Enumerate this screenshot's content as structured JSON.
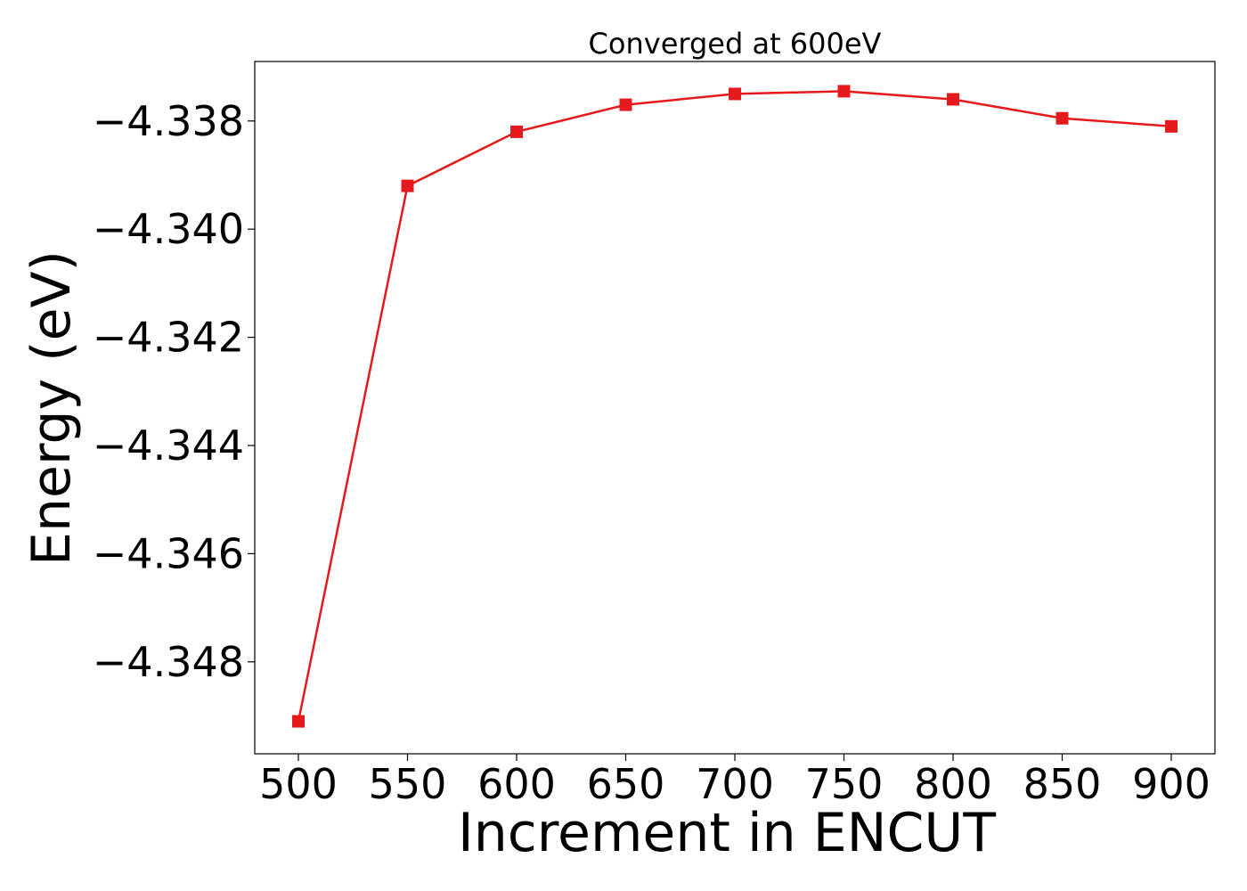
{
  "chart_data": {
    "type": "line",
    "title": "Converged at 600eV",
    "xlabel": "Increment in ENCUT",
    "ylabel": "Energy (eV)",
    "x": [
      500,
      550,
      600,
      650,
      700,
      750,
      800,
      850,
      900
    ],
    "xticks": [
      "500",
      "550",
      "600",
      "650",
      "700",
      "750",
      "800",
      "850",
      "900"
    ],
    "yticks": [
      "−4.338",
      "−4.340",
      "−4.342",
      "−4.344",
      "−4.346",
      "−4.348"
    ],
    "ytick_values": [
      -4.338,
      -4.34,
      -4.342,
      -4.344,
      -4.346,
      -4.348
    ],
    "xlim": [
      480,
      920
    ],
    "ylim": [
      -4.3497,
      -4.3369
    ],
    "series": [
      {
        "color": "#e41a1c",
        "marker": "square",
        "values": [
          -4.3491,
          -4.3392,
          -4.3382,
          -4.3377,
          -4.3375,
          -4.33745,
          -4.3376,
          -4.33795,
          -4.3381
        ]
      }
    ],
    "grid": false,
    "legend": "none"
  }
}
